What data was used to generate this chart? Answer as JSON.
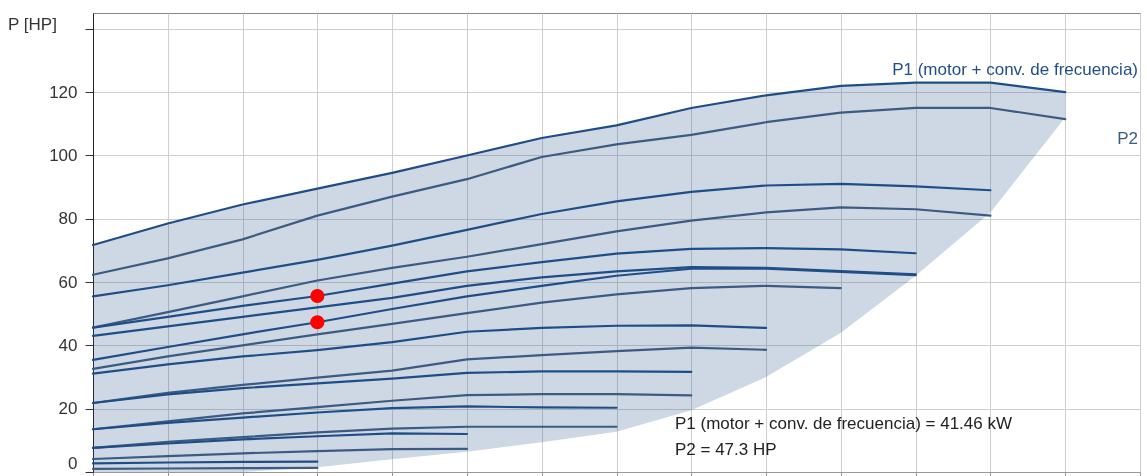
{
  "chart_data": {
    "type": "line",
    "ylabel": "P\n[HP]",
    "categories": [
      null,
      null,
      null,
      null,
      null,
      null,
      null,
      null,
      null,
      null,
      null,
      null,
      null,
      null
    ],
    "ylim": [
      0,
      145
    ],
    "yticks": [
      0,
      20,
      40,
      60,
      80,
      100,
      120,
      {
        "value": 140,
        "label": null
      }
    ],
    "grid": true,
    "tick_labels": "y",
    "line_style": "solid",
    "annotations": [
      "P1 (motor + conv. de frecuencia) = 41.46 kW",
      "P2 = 47.3 HP"
    ],
    "series": [
      {
        "name": "P1 (motor + conv. de frecuencia)",
        "color": "#1f4e87",
        "values": [
          71.7,
          78.5,
          84.5,
          89.5,
          94.5,
          100,
          105.5,
          109.5,
          115,
          119,
          122,
          123,
          123,
          120
        ],
        "upper": [
          71.7,
          78.5,
          84.5,
          89.5,
          94.5,
          100,
          105.5,
          109.5,
          115,
          119,
          122,
          123,
          123,
          120
        ],
        "lower": [
          0,
          0,
          0,
          1.5,
          4,
          6.4,
          9.4,
          12.7,
          19.5,
          30,
          44,
          62,
          82,
          112
        ]
      },
      {
        "name": "P2",
        "color": "#3b5b82",
        "values": [
          62.3,
          67.5,
          73.5,
          81,
          87,
          92.5,
          99.5,
          103.5,
          106.5,
          110.5,
          113.5,
          115,
          115,
          111.5
        ]
      },
      {
        "color": "#1f4e87",
        "values": [
          55.5,
          59,
          63,
          67,
          71.5,
          76.5,
          81.5,
          85.5,
          88.5,
          90.5,
          91,
          90.2,
          89,
          null
        ]
      },
      {
        "color": "#3b5b82",
        "values": [
          45.6,
          50.5,
          55.5,
          60.5,
          64.5,
          68,
          72,
          76,
          79.4,
          82,
          83.6,
          83,
          81,
          null
        ]
      },
      {
        "color": "#1f4e87",
        "values": [
          45.6,
          49,
          52.5,
          55.6,
          59.5,
          63.4,
          66.3,
          69,
          70.5,
          70.7,
          70.3,
          69.1,
          null,
          null
        ]
      },
      {
        "color": "#1f4e87",
        "values": [
          43,
          46,
          49,
          52,
          55,
          58.8,
          61.5,
          63.4,
          64.7,
          64.5,
          63.5,
          62.4,
          null,
          null
        ]
      },
      {
        "color": "#1f4e87",
        "values": [
          35.4,
          39.5,
          43.5,
          47.3,
          51.5,
          55.5,
          58.8,
          62,
          64.2,
          64.2,
          63.2,
          62.2,
          null,
          null
        ]
      },
      {
        "color": "#3b5b82",
        "values": [
          32.6,
          36.5,
          40,
          43.5,
          46.8,
          50.2,
          53.5,
          56.1,
          58.1,
          58.8,
          58.1,
          null,
          null,
          null
        ]
      },
      {
        "color": "#1f4e87",
        "values": [
          31.1,
          34,
          36.5,
          38.5,
          41,
          44.3,
          45.5,
          46.2,
          46.3,
          45.5,
          null,
          null,
          null,
          null
        ]
      },
      {
        "color": "#3b5b82",
        "values": [
          21.8,
          25,
          27.5,
          29.8,
          32,
          35.6,
          36.9,
          38.2,
          39.3,
          38.6,
          null,
          null,
          null,
          null
        ]
      },
      {
        "color": "#1f4e87",
        "values": [
          21.8,
          24.5,
          26.5,
          28,
          29.5,
          31.3,
          31.8,
          31.8,
          31.6,
          null,
          null,
          null,
          null,
          null
        ]
      },
      {
        "color": "#3b5b82",
        "values": [
          13.5,
          16,
          18.5,
          20.5,
          22.5,
          24.3,
          24.6,
          24.6,
          24.2,
          null,
          null,
          null,
          null,
          null
        ]
      },
      {
        "color": "#1f4e87",
        "values": [
          13.5,
          15.5,
          17.2,
          18.8,
          20.2,
          20.7,
          20.4,
          20.3,
          null,
          null,
          null,
          null,
          null,
          null
        ]
      },
      {
        "color": "#3b5b82",
        "values": [
          7.6,
          9.5,
          11,
          12.5,
          13.7,
          14.3,
          14.3,
          14.3,
          null,
          null,
          null,
          null,
          null,
          null
        ]
      },
      {
        "color": "#1f4e87",
        "values": [
          7.6,
          9,
          10.3,
          11.3,
          12.2,
          12,
          null,
          null,
          null,
          null,
          null,
          null,
          null,
          null
        ]
      },
      {
        "color": "#3b5b82",
        "values": [
          4.1,
          5,
          5.9,
          6.6,
          7.2,
          7.3,
          null,
          null,
          null,
          null,
          null,
          null,
          null,
          null
        ]
      },
      {
        "color": "#1f4e87",
        "values": [
          2.7,
          3,
          3.2,
          3.3,
          null,
          null,
          null,
          null,
          null,
          null,
          null,
          null,
          null,
          null
        ]
      },
      {
        "color": "#3b5b82",
        "values": [
          1,
          1.1,
          1.2,
          1.3,
          null,
          null,
          null,
          null,
          null,
          null,
          null,
          null,
          null,
          null
        ]
      },
      {
        "type": "scatter",
        "marker": "circle",
        "color": "#ff0000",
        "values": [
          null,
          null,
          null,
          55.6,
          null,
          null,
          null,
          null,
          null,
          null,
          null,
          null,
          null,
          null
        ]
      },
      {
        "type": "scatter",
        "marker": "circle",
        "color": "#ff0000",
        "values": [
          null,
          null,
          null,
          47.3,
          null,
          null,
          null,
          null,
          null,
          null,
          null,
          null,
          null,
          null
        ]
      }
    ]
  }
}
